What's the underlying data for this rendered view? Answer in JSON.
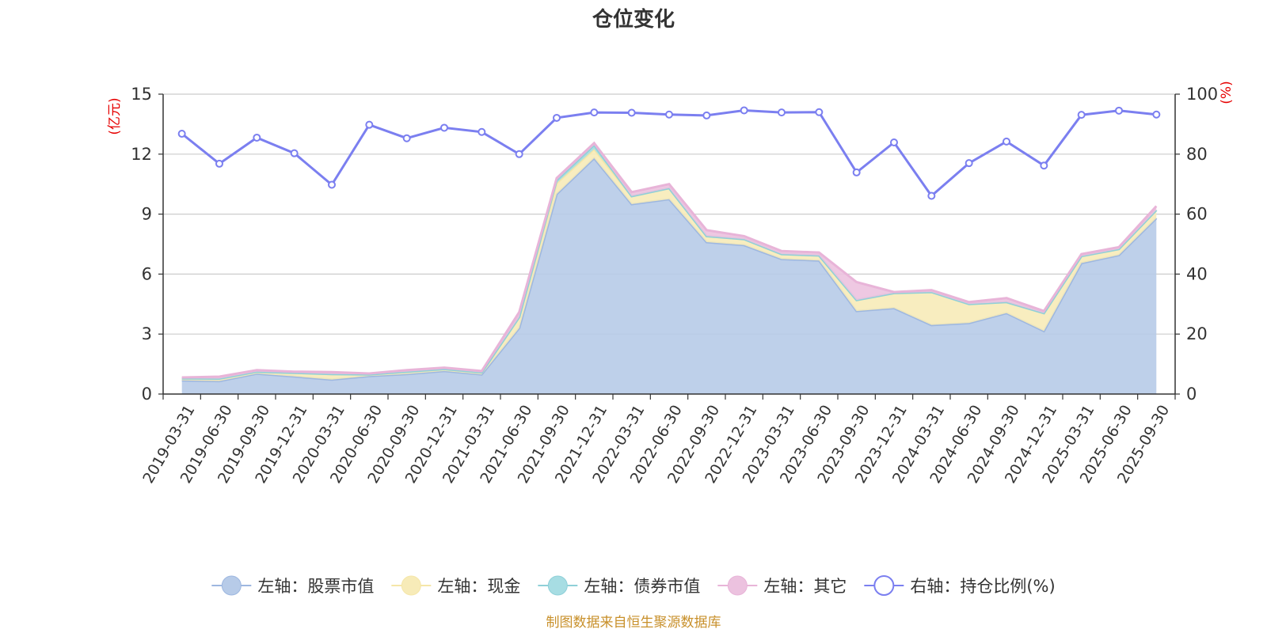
{
  "chart_data": {
    "type": "area",
    "title": "仓位变化",
    "left_unit": "(亿元)",
    "right_unit": "(%)",
    "categories": [
      "2019-03-31",
      "2019-06-30",
      "2019-09-30",
      "2019-12-31",
      "2020-03-31",
      "2020-06-30",
      "2020-09-30",
      "2020-12-31",
      "2021-03-31",
      "2021-06-30",
      "2021-09-30",
      "2021-12-31",
      "2022-03-31",
      "2022-06-30",
      "2022-09-30",
      "2022-12-31",
      "2023-03-31",
      "2023-06-30",
      "2023-09-30",
      "2023-12-31",
      "2024-03-31",
      "2024-06-30",
      "2024-09-30",
      "2024-12-31",
      "2025-03-31",
      "2025-06-30",
      "2025-09-30"
    ],
    "left_axis": {
      "min": 0,
      "max": 15,
      "ticks": [
        "0",
        "3",
        "6",
        "9",
        "12",
        "15"
      ]
    },
    "right_axis": {
      "min": 0,
      "max": 100,
      "ticks": [
        "0",
        "20",
        "40",
        "60",
        "80",
        "100"
      ]
    },
    "grid": true,
    "legend_position": "bottom",
    "stacked_series": [
      {
        "name": "左轴：股票市值",
        "color": "#9db7e0",
        "fill": "#b7cbe8",
        "values": [
          0.68,
          0.65,
          1.02,
          0.88,
          0.72,
          0.9,
          1.0,
          1.15,
          0.98,
          3.3,
          10.0,
          11.8,
          9.5,
          9.75,
          7.6,
          7.45,
          6.75,
          6.68,
          4.15,
          4.3,
          3.45,
          3.55,
          4.05,
          3.15,
          6.55,
          6.95,
          8.8
        ]
      },
      {
        "name": "左轴：现金",
        "color": "#f5e6a8",
        "fill": "#f7ebb8",
        "values": [
          0.1,
          0.12,
          0.1,
          0.18,
          0.28,
          0.08,
          0.12,
          0.1,
          0.1,
          0.55,
          0.55,
          0.45,
          0.4,
          0.55,
          0.3,
          0.3,
          0.25,
          0.25,
          0.55,
          0.75,
          1.65,
          0.95,
          0.55,
          0.9,
          0.35,
          0.3,
          0.4
        ]
      },
      {
        "name": "左轴：债券市值",
        "color": "#8fd0d8",
        "fill": "#a7dde3",
        "values": [
          0.0,
          0.0,
          0.0,
          0.0,
          0.0,
          0.0,
          0.0,
          0.0,
          0.0,
          0.0,
          0.15,
          0.2,
          0.0,
          0.0,
          0.0,
          0.0,
          0.0,
          0.0,
          0.0,
          0.0,
          0.0,
          0.0,
          0.0,
          0.0,
          0.0,
          0.0,
          0.0
        ]
      },
      {
        "name": "左轴：其它",
        "color": "#e8b4d8",
        "fill": "#ecc2df",
        "values": [
          0.05,
          0.1,
          0.08,
          0.06,
          0.1,
          0.05,
          0.08,
          0.07,
          0.07,
          0.25,
          0.1,
          0.1,
          0.2,
          0.2,
          0.3,
          0.15,
          0.15,
          0.15,
          0.9,
          0.05,
          0.1,
          0.1,
          0.2,
          0.1,
          0.1,
          0.1,
          0.2
        ]
      }
    ],
    "line_series": {
      "name": "右轴：持仓比例(%)",
      "color": "#7b7ff0",
      "values": [
        86.8,
        76.8,
        85.5,
        80.3,
        69.8,
        89.8,
        85.3,
        88.8,
        87.4,
        80.0,
        92.1,
        93.9,
        93.8,
        93.2,
        92.9,
        94.6,
        93.9,
        94.0,
        73.9,
        83.9,
        66.1,
        77.0,
        84.2,
        76.2,
        93.1,
        94.5,
        93.2
      ]
    },
    "source_note": "制图数据来自恒生聚源数据库"
  }
}
